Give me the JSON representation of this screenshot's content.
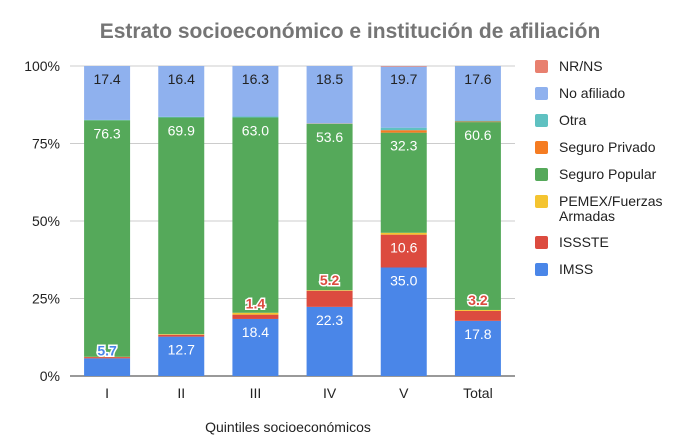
{
  "chart_data": {
    "type": "bar",
    "stacked": true,
    "normalized": true,
    "title": "Estrato socioeconómico e institución de afiliación",
    "xlabel": "Quintiles socioeconómicos",
    "ylabel": "",
    "ylim": [
      0,
      100
    ],
    "yticks": [
      "0%",
      "25%",
      "50%",
      "75%",
      "100%"
    ],
    "categories": [
      "I",
      "II",
      "III",
      "IV",
      "V",
      "Total"
    ],
    "legend_position": "right",
    "grid": true,
    "series": [
      {
        "name": "IMSS",
        "color": "#4a86e8",
        "values": [
          5.7,
          12.7,
          18.4,
          22.3,
          35.0,
          17.8
        ],
        "labels": [
          "5.7",
          "12.7",
          "18.4",
          "22.3",
          "35.0",
          "17.8"
        ]
      },
      {
        "name": "ISSSTE",
        "color": "#dc4b3f",
        "values": [
          0.4,
          0.6,
          1.4,
          5.2,
          10.6,
          3.2
        ],
        "labels": [
          "",
          "",
          "1.4",
          "5.2",
          "10.6",
          "3.2"
        ]
      },
      {
        "name": "PEMEX/Fuerzas Armadas",
        "color": "#f4c430",
        "values": [
          0.1,
          0.2,
          0.6,
          0.2,
          0.6,
          0.3
        ],
        "labels": [
          "",
          "",
          "",
          "",
          "",
          ""
        ]
      },
      {
        "name": "Seguro Popular",
        "color": "#55a95a",
        "values": [
          76.3,
          69.9,
          63.0,
          53.6,
          32.3,
          60.6
        ],
        "labels": [
          "76.3",
          "69.9",
          "63.0",
          "53.6",
          "32.3",
          "60.6"
        ]
      },
      {
        "name": "Seguro Privado",
        "color": "#f57c22",
        "values": [
          0.0,
          0.0,
          0.0,
          0.1,
          0.8,
          0.2
        ],
        "labels": [
          "",
          "",
          "",
          "",
          "",
          ""
        ]
      },
      {
        "name": "Otra",
        "color": "#5fc1c1",
        "values": [
          0.1,
          0.2,
          0.3,
          0.1,
          0.8,
          0.3
        ],
        "labels": [
          "",
          "",
          "",
          "",
          "",
          ""
        ]
      },
      {
        "name": "No afiliado",
        "color": "#8fb1ee",
        "values": [
          17.4,
          16.4,
          16.3,
          18.5,
          19.7,
          17.6
        ],
        "labels": [
          "17.4",
          "16.4",
          "16.3",
          "18.5",
          "19.7",
          "17.6"
        ]
      },
      {
        "name": "NR/NS",
        "color": "#e8806f",
        "values": [
          0.0,
          0.0,
          0.0,
          0.0,
          0.2,
          0.0
        ],
        "labels": [
          "",
          "",
          "",
          "",
          "",
          ""
        ]
      }
    ],
    "legend_order": [
      "NR/NS",
      "No afiliado",
      "Otra",
      "Seguro Privado",
      "Seguro Popular",
      "PEMEX/Fuerzas Armadas",
      "ISSSTE",
      "IMSS"
    ]
  }
}
